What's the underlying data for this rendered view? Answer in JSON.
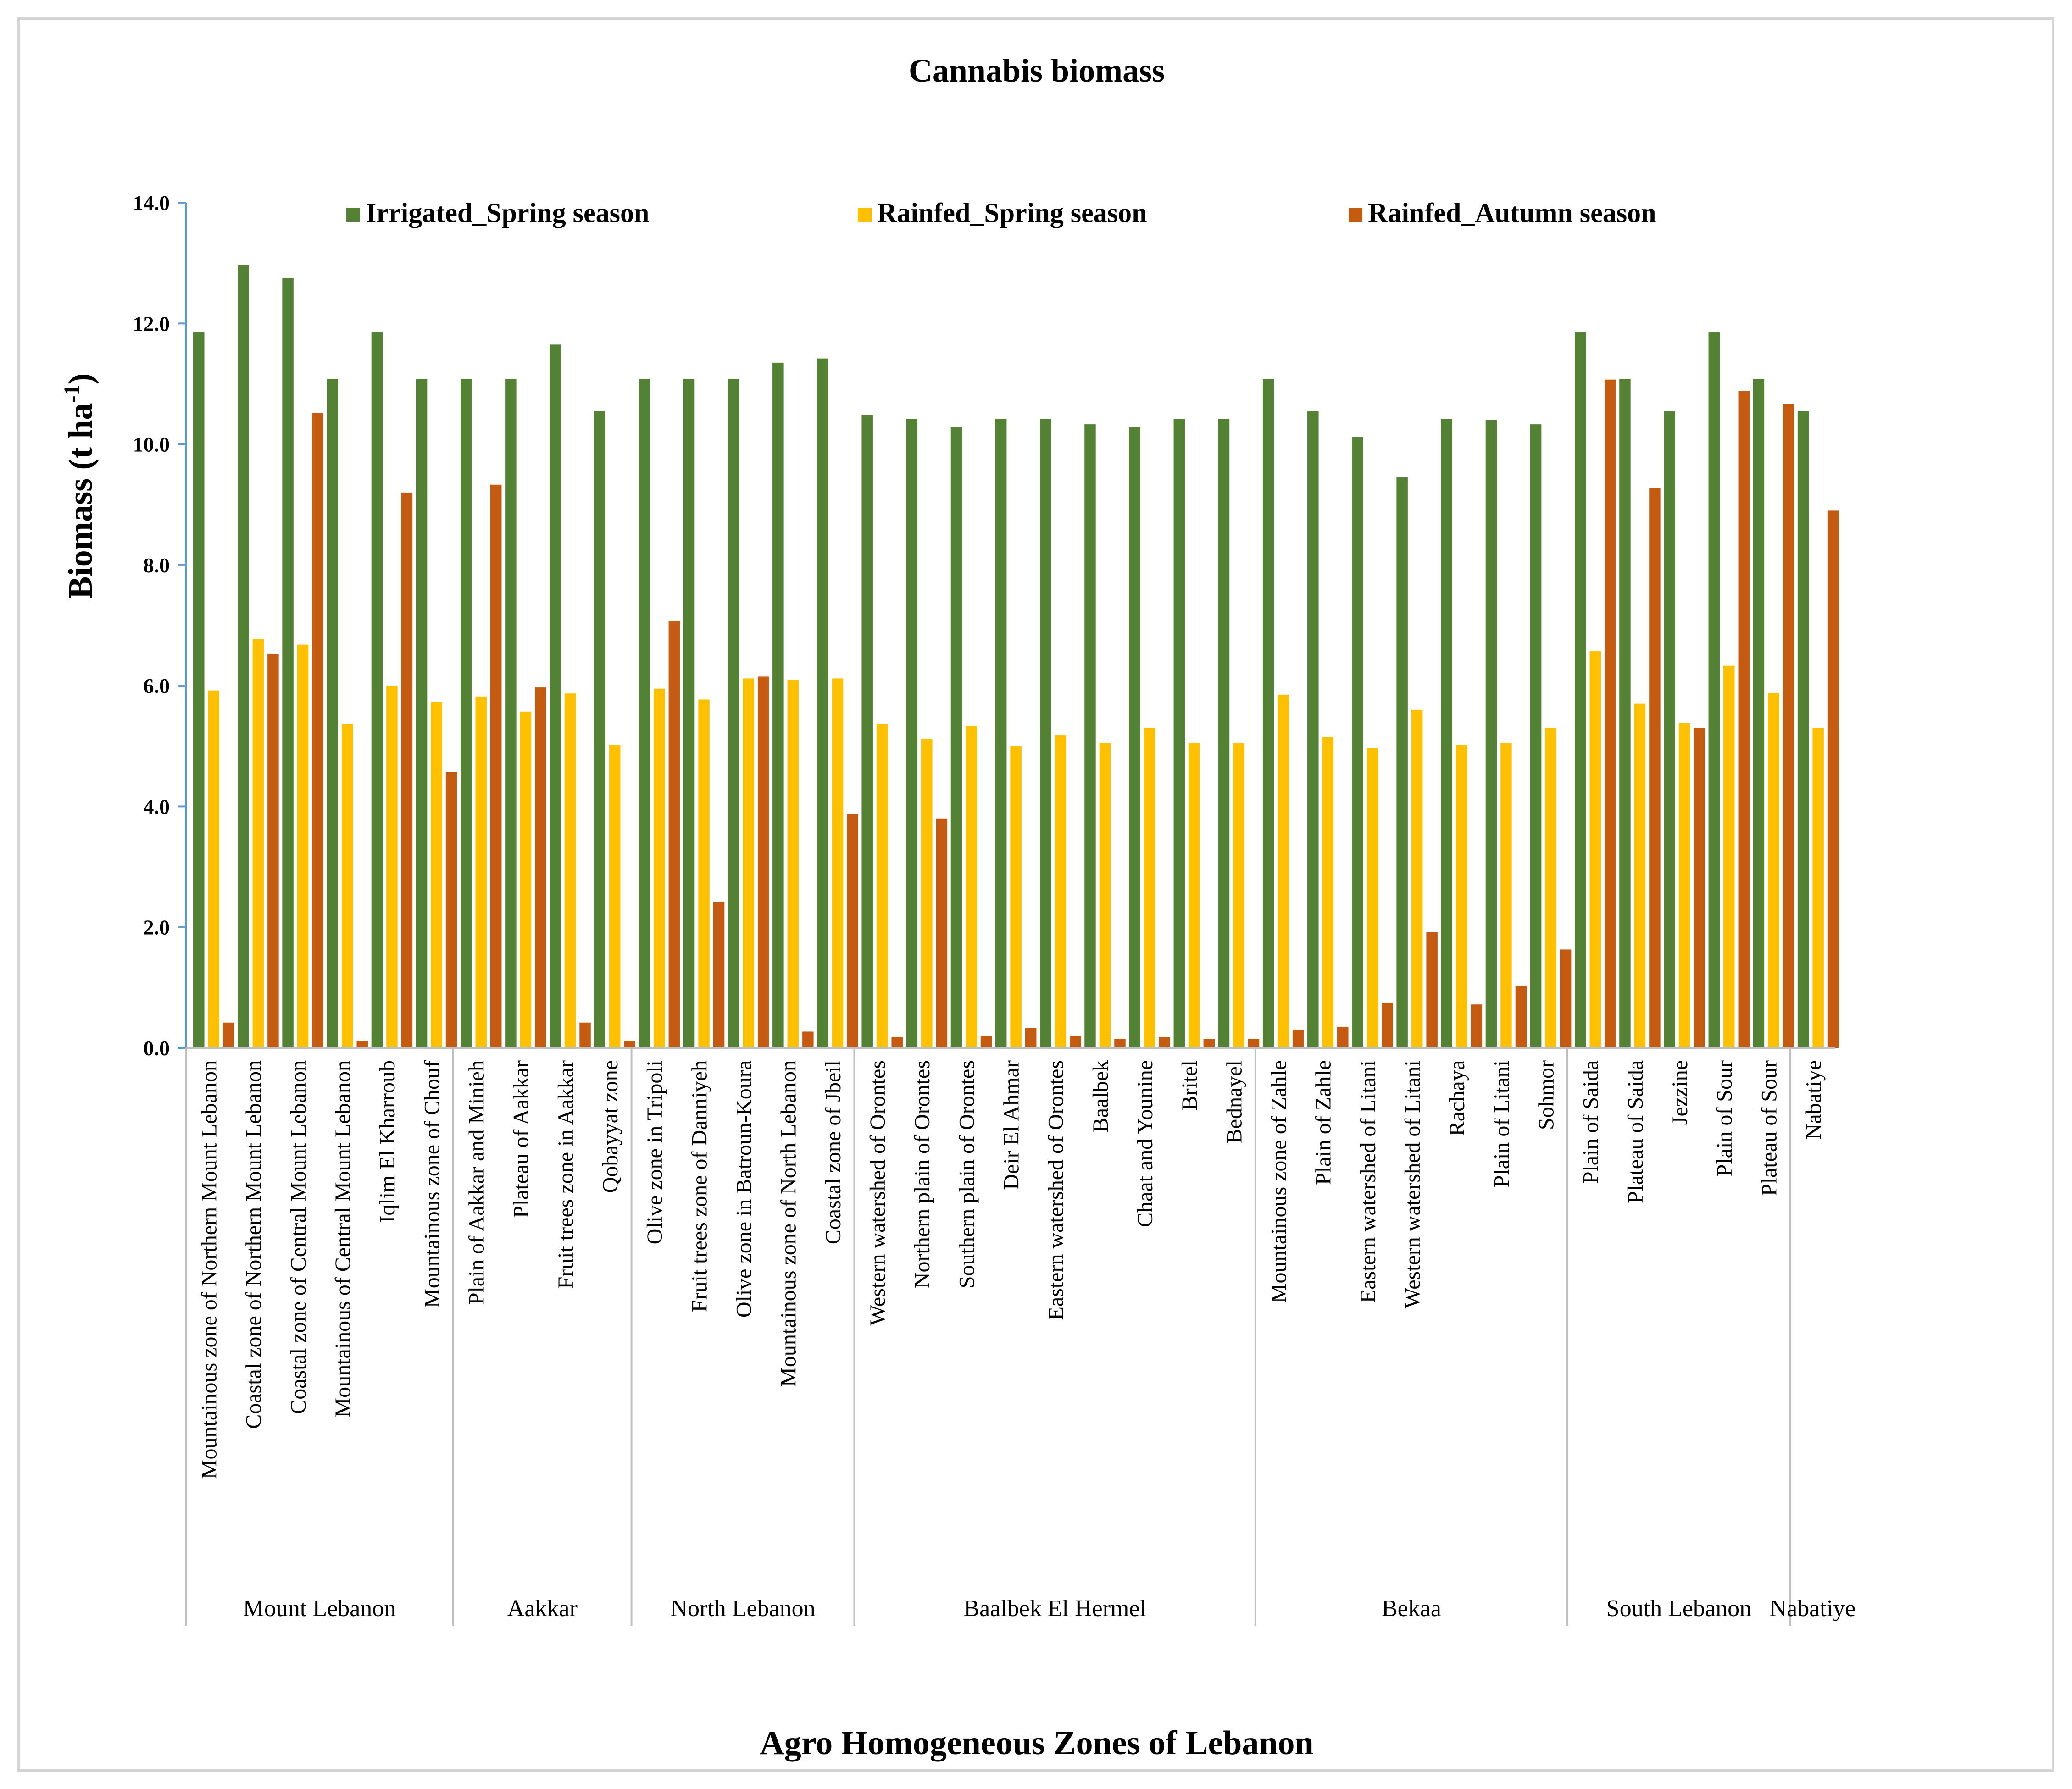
{
  "chart_data": {
    "type": "bar",
    "title": "Cannabis biomass",
    "xlabel": "Agro Homogeneous Zones of Lebanon",
    "ylabel": "Biomass (t ha",
    "ylabel_sup": "-1",
    "ylabel_close": ")",
    "ylim": [
      0,
      14
    ],
    "yticks": [
      "0.0",
      "2.0",
      "4.0",
      "6.0",
      "8.0",
      "10.0",
      "12.0",
      "14.0"
    ],
    "legend_position": "top",
    "categories": [
      "Mountainous zone of Northern Mount Lebanon",
      "Coastal zone of Northern Mount Lebanon",
      "Coastal zone of Central Mount Lebanon",
      "Mountainous of Central Mount Lebanon",
      "Iqlim El Kharroub",
      "Mountainous zone of Chouf",
      "Plain of Aakkar and Minieh",
      "Plateau of Aakkar",
      "Fruit trees zone in Aakkar",
      "Qobayyat zone",
      "Olive zone in Tripoli",
      "Fruit trees zone of Danniyeh",
      "Olive zone in Batroun-Koura",
      "Mountainous zone of North Lebanon",
      "Coastal zone of Jbeil",
      "Western watershed of Orontes",
      "Northern plain of Orontes",
      "Southern plain of Orontes",
      "Deir El Ahmar",
      "Eastern watershed of Orontes",
      "Baalbek",
      "Chaat and Younine",
      "Britel",
      "Bednayel",
      "Mountainous zone of Zahle",
      "Plain of Zahle",
      "Eastern watershed of Litani",
      "Western watershed of Litani",
      "Rachaya",
      "Plain of Litani",
      "Sohmor",
      "Plain of Saida",
      "Plateau of Saida",
      "Jezzine",
      "Plain of Sour",
      "Plateau of Sour",
      "Nabatiye"
    ],
    "groups": [
      {
        "name": "Mount Lebanon",
        "count": 6
      },
      {
        "name": "Aakkar",
        "count": 4
      },
      {
        "name": "North Lebanon",
        "count": 5
      },
      {
        "name": "Baalbek El Hermel",
        "count": 9
      },
      {
        "name": "Bekaa",
        "count": 7
      },
      {
        "name": "South Lebanon",
        "count": 5
      },
      {
        "name": "Nabatiye",
        "count": 1
      }
    ],
    "series": [
      {
        "name": "Irrigated_Spring season",
        "color": "#548235",
        "values": [
          11.85,
          12.97,
          12.75,
          11.08,
          11.85,
          11.08,
          11.08,
          11.08,
          11.65,
          10.55,
          11.08,
          11.08,
          11.08,
          11.35,
          11.42,
          10.48,
          10.42,
          10.28,
          10.42,
          10.42,
          10.33,
          10.28,
          10.42,
          10.42,
          11.08,
          10.55,
          10.12,
          9.45,
          10.42,
          10.4,
          10.33,
          11.85,
          11.08,
          10.55,
          11.85,
          11.08,
          10.55
        ]
      },
      {
        "name": "Rainfed_Spring season",
        "color": "#FFC000",
        "values": [
          5.92,
          6.77,
          6.68,
          5.37,
          6.0,
          5.73,
          5.82,
          5.57,
          5.87,
          5.02,
          5.95,
          5.77,
          6.12,
          6.1,
          6.12,
          5.37,
          5.12,
          5.33,
          5.0,
          5.18,
          5.05,
          5.3,
          5.05,
          5.05,
          5.85,
          5.15,
          4.97,
          5.6,
          5.02,
          5.05,
          5.3,
          6.57,
          5.7,
          5.38,
          6.33,
          5.88,
          5.3
        ]
      },
      {
        "name": "Rainfed_Autumn season",
        "color": "#C55A11",
        "values": [
          0.42,
          6.53,
          10.52,
          0.12,
          9.2,
          4.57,
          9.33,
          5.97,
          0.42,
          0.12,
          7.07,
          2.42,
          6.15,
          0.27,
          3.87,
          0.18,
          3.8,
          0.2,
          0.33,
          0.2,
          0.15,
          0.18,
          0.15,
          0.15,
          0.3,
          0.35,
          0.75,
          1.92,
          0.72,
          1.03,
          1.63,
          11.07,
          9.27,
          5.3,
          10.88,
          10.67,
          8.9
        ]
      }
    ]
  }
}
